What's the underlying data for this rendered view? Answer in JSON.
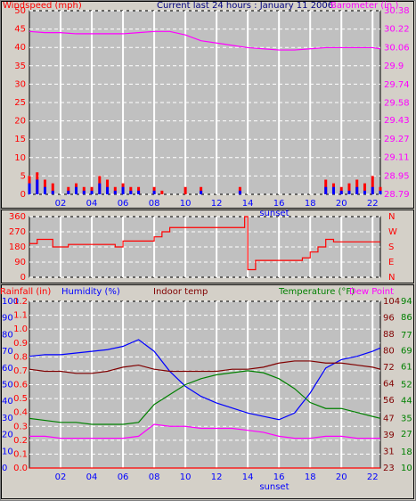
{
  "chart_data": [
    {
      "type": "combo",
      "title": "Current last 24 hours : January 11 2006",
      "y_label": "Windspeed (mph)",
      "y2_label": "Barometer (in.)",
      "xlim": [
        0,
        22.5
      ],
      "xticks": [
        {
          "value": 2,
          "label": "02"
        },
        {
          "value": 4,
          "label": "04"
        },
        {
          "value": 6,
          "label": "06"
        },
        {
          "value": 8,
          "label": "08"
        },
        {
          "value": 10,
          "label": "10"
        },
        {
          "value": 12,
          "label": "12"
        },
        {
          "value": 14,
          "label": "14"
        },
        {
          "value": 16,
          "label": "16"
        },
        {
          "value": 18,
          "label": "18"
        },
        {
          "value": 20,
          "label": "20"
        },
        {
          "value": 22,
          "label": "22"
        }
      ],
      "ylim": [
        0,
        50
      ],
      "yticks": [
        0,
        5,
        10,
        15,
        20,
        25,
        30,
        35,
        40,
        45,
        50
      ],
      "y2lim": [
        28.79,
        30.38
      ],
      "y2ticks": [
        28.79,
        28.95,
        29.11,
        29.27,
        29.43,
        29.58,
        29.74,
        29.9,
        30.06,
        30.22,
        30.38
      ],
      "grid": true,
      "annotation": {
        "text": "sunset",
        "x": 15.7
      },
      "series": [
        {
          "type": "bar",
          "color": "#ff0000",
          "x": [
            0,
            0.5,
            1,
            1.5,
            2,
            2.5,
            3,
            3.5,
            4,
            4.5,
            5,
            5.5,
            6,
            6.5,
            7,
            7.5,
            8,
            8.5,
            9,
            9.5,
            10,
            10.5,
            11,
            11.5,
            12,
            12.5,
            13,
            13.5,
            14,
            14.5,
            15,
            15.5,
            16,
            16.5,
            17,
            17.5,
            18,
            18.5,
            19,
            19.5,
            20,
            20.5,
            21,
            21.5,
            22,
            22.5
          ],
          "values": [
            5,
            6,
            4,
            3,
            0,
            2,
            3,
            2,
            2,
            5,
            4,
            2,
            3,
            2,
            2,
            0,
            2,
            1,
            0,
            0,
            2,
            0,
            2,
            0,
            0,
            0,
            0,
            2,
            0,
            0,
            0,
            0,
            0,
            0,
            0,
            0,
            0,
            0,
            4,
            3,
            2,
            3,
            4,
            3,
            5,
            2
          ]
        },
        {
          "type": "bar",
          "color": "#0000ff",
          "x": [
            0,
            0.5,
            1,
            1.5,
            2,
            2.5,
            3,
            3.5,
            4,
            4.5,
            5,
            5.5,
            6,
            6.5,
            7,
            7.5,
            8,
            8.5,
            9,
            9.5,
            10,
            10.5,
            11,
            11.5,
            12,
            12.5,
            13,
            13.5,
            14,
            14.5,
            15,
            15.5,
            16,
            16.5,
            17,
            17.5,
            18,
            18.5,
            19,
            19.5,
            20,
            20.5,
            21,
            21.5,
            22,
            22.5
          ],
          "values": [
            3,
            4,
            2,
            1,
            0,
            1,
            2,
            1,
            1,
            3,
            2,
            1,
            2,
            1,
            1,
            0,
            1,
            0,
            0,
            0,
            0,
            0,
            1,
            0,
            0,
            0,
            0,
            1,
            0,
            0,
            0,
            0,
            0,
            0,
            0,
            0,
            0,
            0,
            2,
            2,
            1,
            1,
            2,
            1,
            2,
            1
          ]
        },
        {
          "type": "line",
          "axis": "y2",
          "color": "#ff00ff",
          "x": [
            0,
            1,
            2,
            3,
            4,
            5,
            6,
            7,
            8,
            9,
            10,
            11,
            12,
            13,
            14,
            15,
            16,
            17,
            18,
            19,
            20,
            21,
            22,
            22.5
          ],
          "values": [
            30.2,
            30.19,
            30.19,
            30.18,
            30.18,
            30.18,
            30.18,
            30.19,
            30.2,
            30.2,
            30.17,
            30.12,
            30.1,
            30.08,
            30.06,
            30.05,
            30.04,
            30.04,
            30.05,
            30.06,
            30.06,
            30.06,
            30.06,
            30.05
          ]
        }
      ]
    },
    {
      "type": "step",
      "xlim": [
        0,
        22.5
      ],
      "xticks": [
        2,
        4,
        6,
        8,
        10,
        12,
        14,
        16,
        18,
        20,
        22
      ],
      "ylim": [
        0,
        360
      ],
      "yticks": [
        0,
        90,
        180,
        270,
        360
      ],
      "y2lim": [
        0,
        360
      ],
      "y2ticks": [
        {
          "value": 0,
          "label": "N"
        },
        {
          "value": 90,
          "label": "E"
        },
        {
          "value": 180,
          "label": "S"
        },
        {
          "value": 270,
          "label": "W"
        },
        {
          "value": 360,
          "label": "N"
        }
      ],
      "grid": true,
      "series": [
        {
          "color": "#ff0000",
          "x": [
            0,
            0.5,
            1.5,
            2.5,
            5.5,
            6,
            8,
            8.5,
            9,
            13.8,
            14,
            14.5,
            17.5,
            18,
            18.5,
            19,
            19.5,
            22.5
          ],
          "values": [
            200,
            225,
            180,
            195,
            180,
            215,
            240,
            270,
            295,
            360,
            45,
            100,
            115,
            150,
            180,
            225,
            210,
            210
          ]
        }
      ]
    },
    {
      "type": "line",
      "xlim": [
        0,
        22.5
      ],
      "xticks": [
        {
          "value": 2,
          "label": "02"
        },
        {
          "value": 4,
          "label": "04"
        },
        {
          "value": 6,
          "label": "06"
        },
        {
          "value": 8,
          "label": "08"
        },
        {
          "value": 10,
          "label": "10"
        },
        {
          "value": 12,
          "label": "12"
        },
        {
          "value": 14,
          "label": "14"
        },
        {
          "value": 16,
          "label": "16"
        },
        {
          "value": 18,
          "label": "18"
        },
        {
          "value": 20,
          "label": "20"
        },
        {
          "value": 22,
          "label": "22"
        }
      ],
      "ylim": [
        0,
        1.2
      ],
      "yticks": [
        {
          "value": 0,
          "label": "0.0"
        },
        0.1,
        0.2,
        0.3,
        0.4,
        0.5,
        0.6,
        0.7,
        0.8,
        0.9,
        {
          "value": 1,
          "label": "1.0"
        },
        1.1,
        1.2
      ],
      "y2lim": [
        23,
        104
      ],
      "y2ticks": [
        23,
        31,
        39,
        47,
        56,
        64,
        72,
        80,
        88,
        96,
        104
      ],
      "y3lim": [
        0,
        100
      ],
      "y3ticks": [
        0,
        10,
        20,
        30,
        40,
        50,
        60,
        70,
        80,
        90,
        100
      ],
      "y4lim": [
        10,
        94
      ],
      "y4ticks": [
        10,
        18,
        27,
        35,
        44,
        52,
        61,
        69,
        77,
        86,
        94
      ],
      "grid": true,
      "annotation": {
        "text": "sunset",
        "x": 15.7
      },
      "x": [
        0,
        1,
        2,
        3,
        4,
        5,
        6,
        7,
        8,
        9,
        10,
        11,
        12,
        13,
        14,
        15,
        16,
        17,
        18,
        19,
        20,
        21,
        22,
        22.5
      ],
      "series": [
        {
          "name": "Rainfall (in)",
          "axis": "y",
          "color": "#ff0000",
          "values": [
            0,
            0,
            0,
            0,
            0,
            0,
            0,
            0,
            0,
            0,
            0,
            0,
            0,
            0,
            0,
            0,
            0,
            0,
            0,
            0,
            0,
            0,
            0,
            0
          ]
        },
        {
          "name": "Humidity (%)",
          "axis": "y3",
          "color": "#0000ff",
          "values": [
            67,
            68,
            68,
            69,
            70,
            71,
            73,
            77,
            70,
            58,
            49,
            43,
            39,
            36,
            33,
            31,
            29,
            33,
            45,
            60,
            65,
            67,
            70,
            72
          ]
        },
        {
          "name": "Indoor temp",
          "axis": "y2",
          "color": "#800000",
          "values": [
            71,
            70,
            70,
            69,
            69,
            70,
            72,
            73,
            71,
            70,
            70,
            70,
            70,
            71,
            71,
            72,
            74,
            75,
            75,
            74,
            74,
            73,
            72,
            71
          ]
        },
        {
          "name": "Temperature (°F)",
          "axis": "y4",
          "color": "#008000",
          "values": [
            35,
            34,
            33,
            33,
            32,
            32,
            32,
            33,
            42,
            47,
            52,
            55,
            57,
            58,
            59,
            58,
            55,
            50,
            43,
            40,
            40,
            38,
            36,
            35
          ]
        },
        {
          "name": "Dew Point",
          "axis": "y4",
          "color": "#ff00ff",
          "values": [
            26,
            26,
            25,
            25,
            25,
            25,
            25,
            26,
            32,
            31,
            31,
            30,
            30,
            30,
            29,
            28,
            26,
            25,
            25,
            26,
            26,
            25,
            25,
            25
          ]
        }
      ]
    }
  ]
}
